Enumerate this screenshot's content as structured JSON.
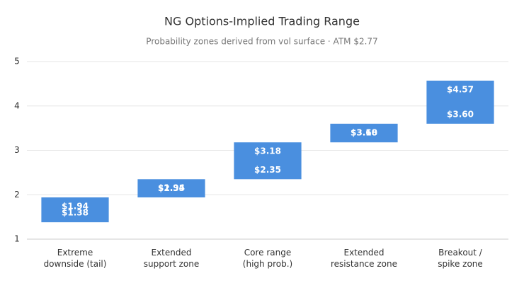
{
  "chart_data": {
    "type": "floating-bar",
    "title": "NG Options-Implied Trading Range",
    "subtitle": "Probability zones derived from vol surface · ATM $2.77",
    "categories": [
      "Extreme\ndownside (tail)",
      "Extended\nsupport zone",
      "Core range\n(high prob.)",
      "Extended\nresistance zone",
      "Breakout /\nspike zone"
    ],
    "low": [
      1.38,
      1.94,
      2.35,
      3.18,
      3.6
    ],
    "low_labels": [
      "$1.38",
      "$1.94",
      "$2.35",
      "$3.18",
      "$3.60"
    ],
    "high": [
      1.94,
      2.35,
      3.18,
      3.6,
      4.57
    ],
    "high_labels": [
      "$1.94",
      "$2.35",
      "$3.18",
      "$3.60",
      "$4.57"
    ],
    "color": "#4a8fdf",
    "ylim": [
      1,
      5
    ],
    "yticks": [
      1,
      2,
      3,
      4,
      5
    ],
    "grid": true
  }
}
